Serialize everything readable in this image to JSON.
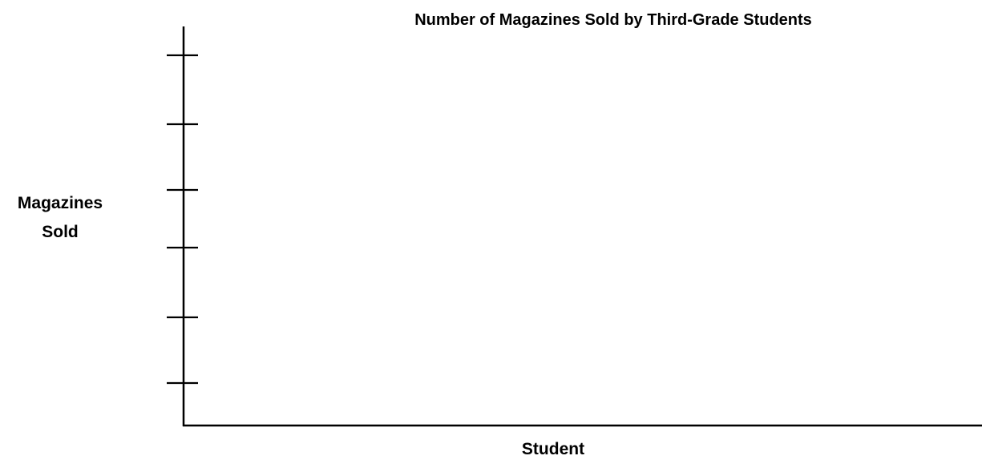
{
  "chart_data": {
    "type": "bar",
    "title": "Number of Magazines Sold by Third-Grade Students",
    "xlabel": "Student",
    "ylabel_lines": [
      "Magazines",
      "Sold"
    ],
    "y_tick_count": 6,
    "categories": [],
    "series": [],
    "grid": false
  }
}
